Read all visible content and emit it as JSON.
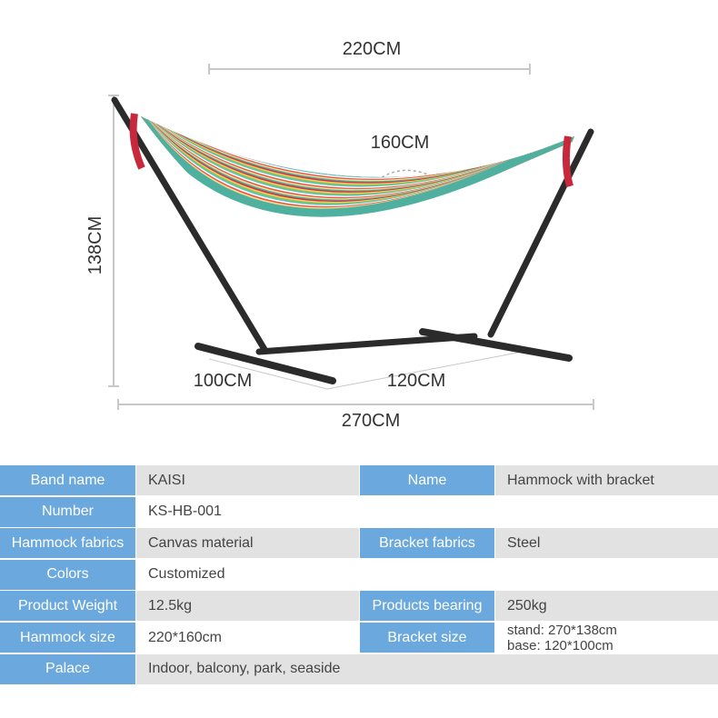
{
  "dimensions": {
    "width": "220CM",
    "hammock_width": "160CM",
    "height": "138CM",
    "depth": "100CM",
    "base": "120CM",
    "length": "270CM"
  },
  "table": {
    "rows": [
      [
        "Band name",
        "KAISI",
        "Name",
        "Hammock with bracket"
      ],
      [
        "Number",
        "KS-HB-001"
      ],
      [
        "Hammock fabrics",
        "Canvas material",
        "Bracket fabrics",
        "Steel"
      ],
      [
        "Colors",
        "Customized"
      ],
      [
        "Product Weight",
        "12.5kg",
        "Products bearing",
        "250kg"
      ],
      [
        "Hammock size",
        "220*160cm",
        "Bracket size",
        [
          "stand: 270*138cm",
          "base: 120*100cm"
        ]
      ],
      [
        "Palace",
        "Indoor, balcony, park, seaside"
      ]
    ]
  }
}
